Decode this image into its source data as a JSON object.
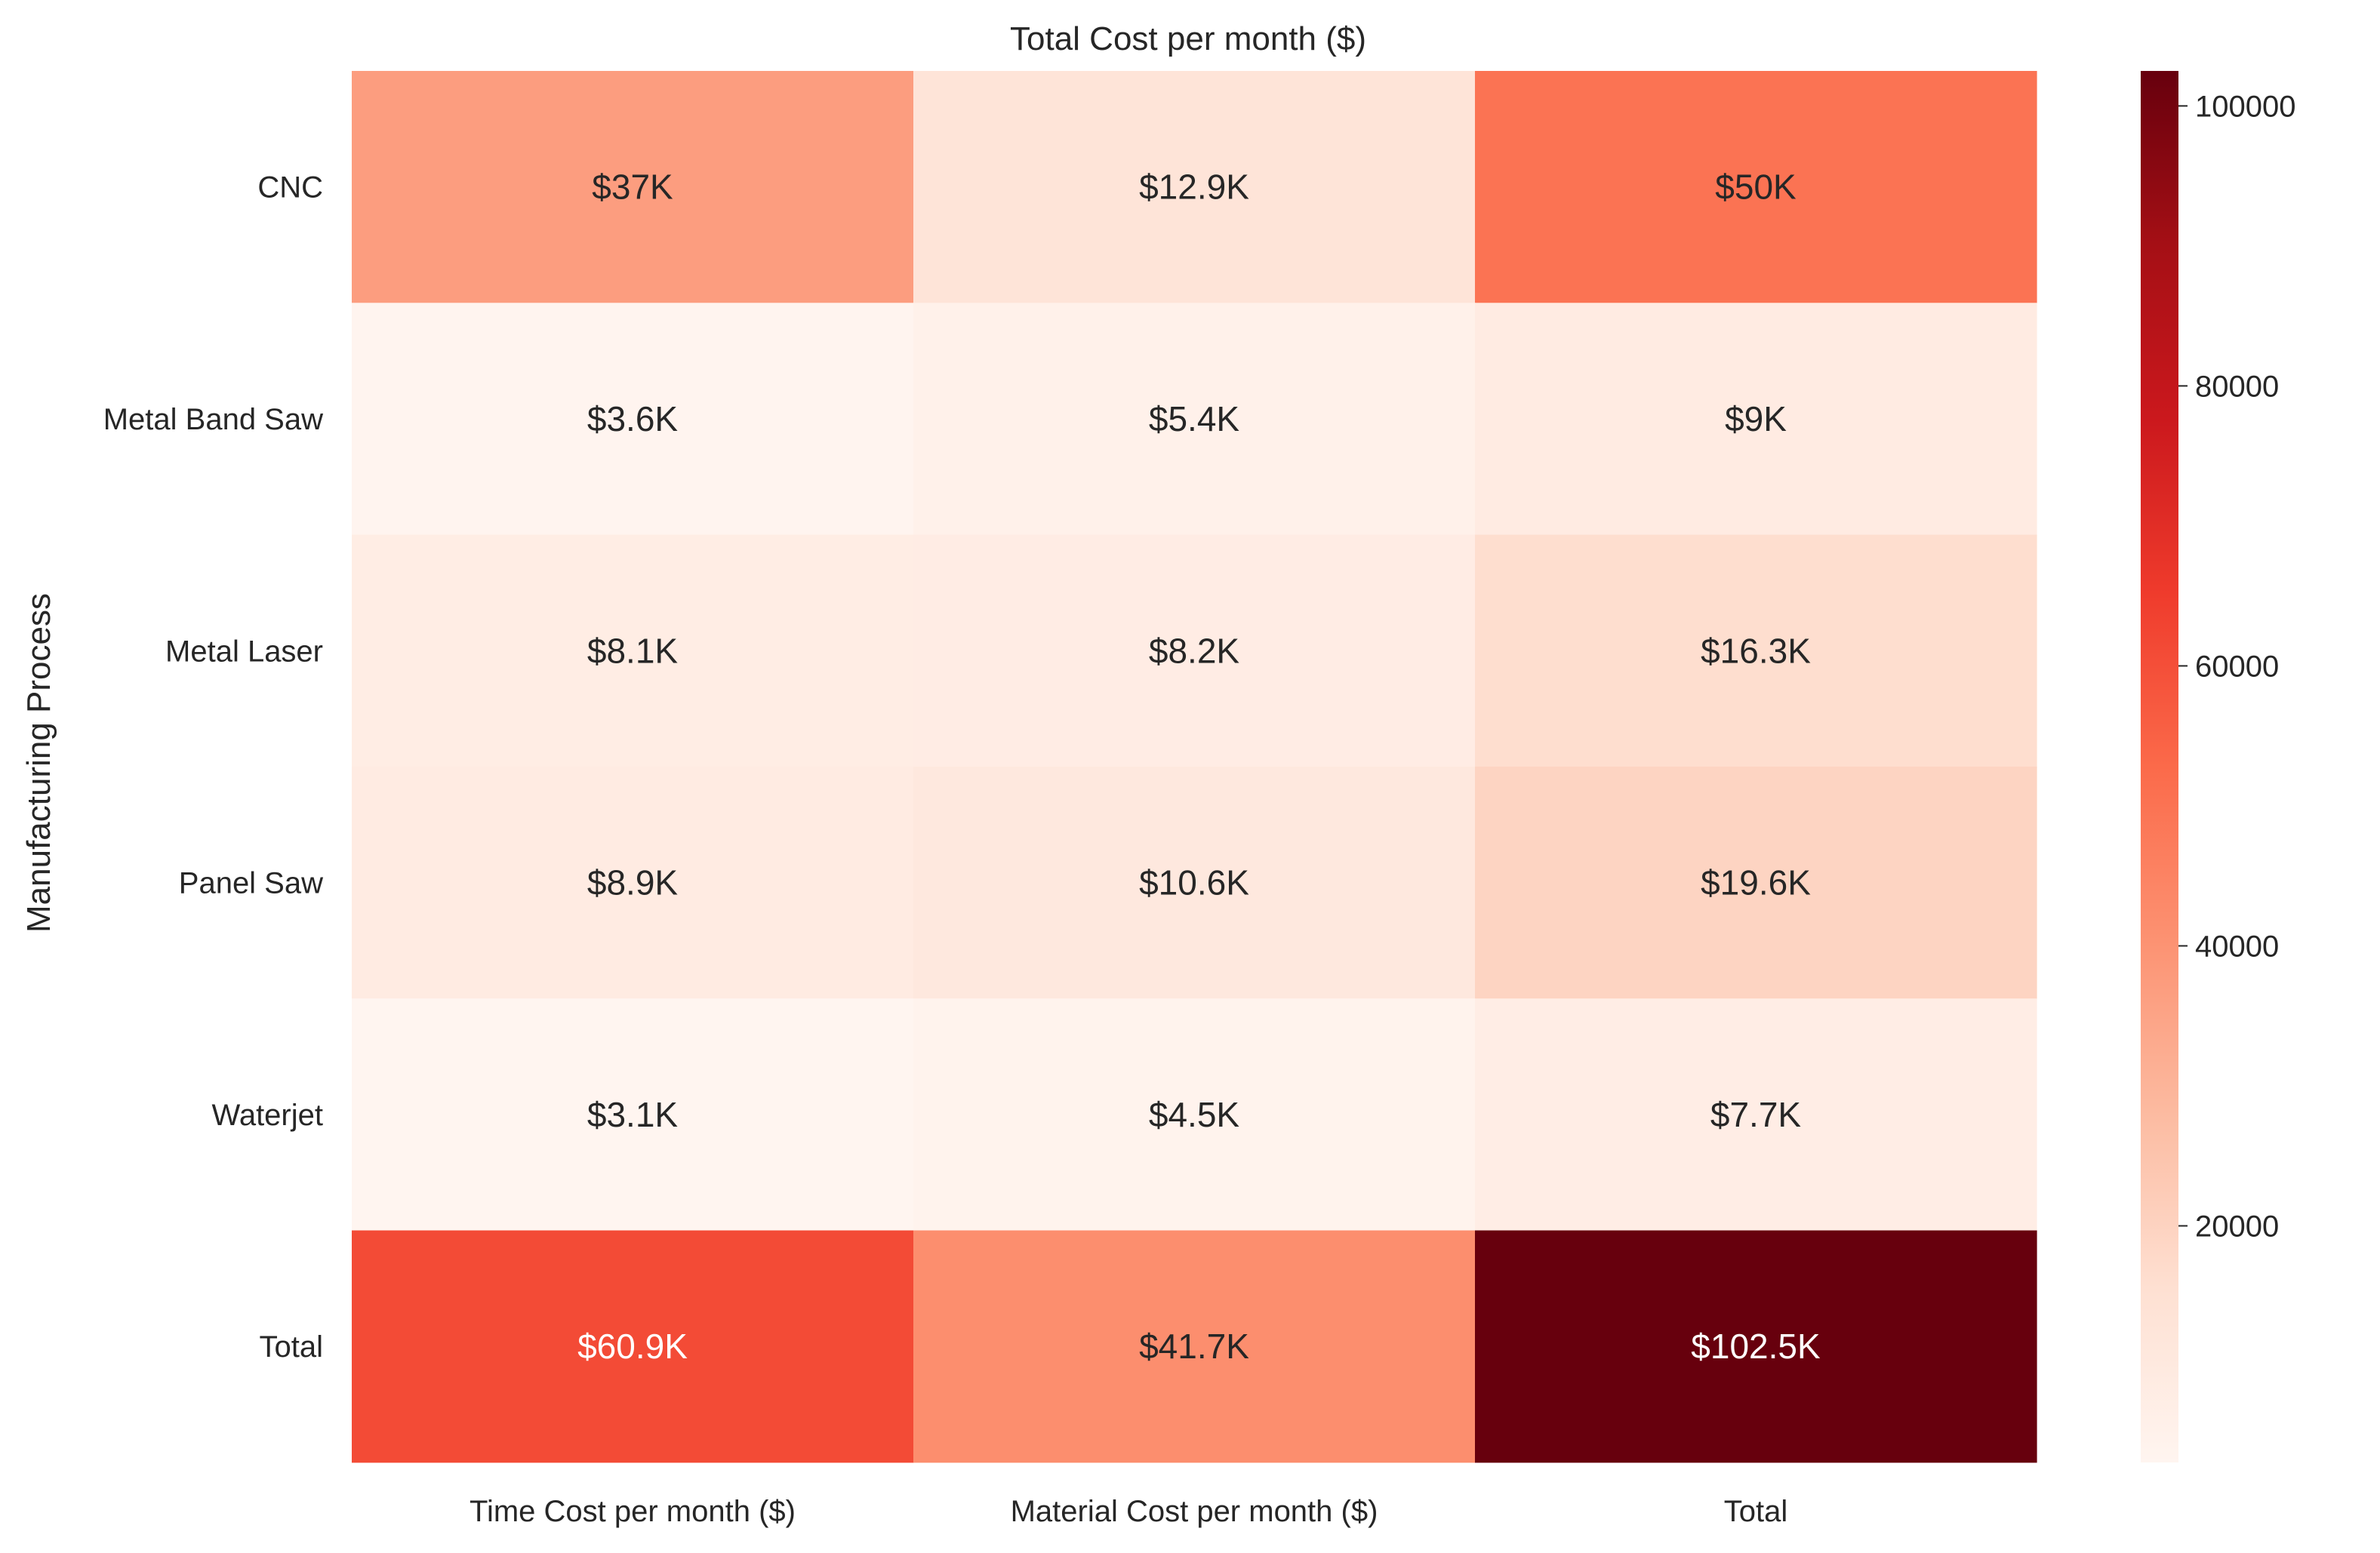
{
  "chart_data": {
    "type": "heatmap",
    "title": "Total Cost per month ($)",
    "xlabel": "",
    "ylabel": "Manufacturing Process",
    "x_categories": [
      "Time Cost per month ($)",
      "Material Cost per month ($)",
      "Total"
    ],
    "y_categories": [
      "CNC",
      "Metal Band Saw",
      "Metal Laser",
      "Panel Saw",
      "Waterjet",
      "Total"
    ],
    "values": [
      [
        37000,
        12900,
        50000
      ],
      [
        3600,
        5400,
        9000
      ],
      [
        8100,
        8200,
        16300
      ],
      [
        8900,
        10600,
        19600
      ],
      [
        3100,
        4500,
        7700
      ],
      [
        60900,
        41700,
        102500
      ]
    ],
    "annotations": [
      [
        "$37K",
        "$12.9K",
        "$50K"
      ],
      [
        "$3.6K",
        "$5.4K",
        "$9K"
      ],
      [
        "$8.1K",
        "$8.2K",
        "$16.3K"
      ],
      [
        "$8.9K",
        "$10.6K",
        "$19.6K"
      ],
      [
        "$3.1K",
        "$4.5K",
        "$7.7K"
      ],
      [
        "$60.9K",
        "$41.7K",
        "$102.5K"
      ]
    ],
    "colormap": "Reds",
    "colorbar": {
      "min": 3100,
      "max": 102500,
      "ticks": [
        20000,
        40000,
        60000,
        80000,
        100000
      ],
      "tick_labels": [
        "20000",
        "40000",
        "60000",
        "80000",
        "100000"
      ]
    },
    "grid": false,
    "legend": "colorbar-right"
  }
}
